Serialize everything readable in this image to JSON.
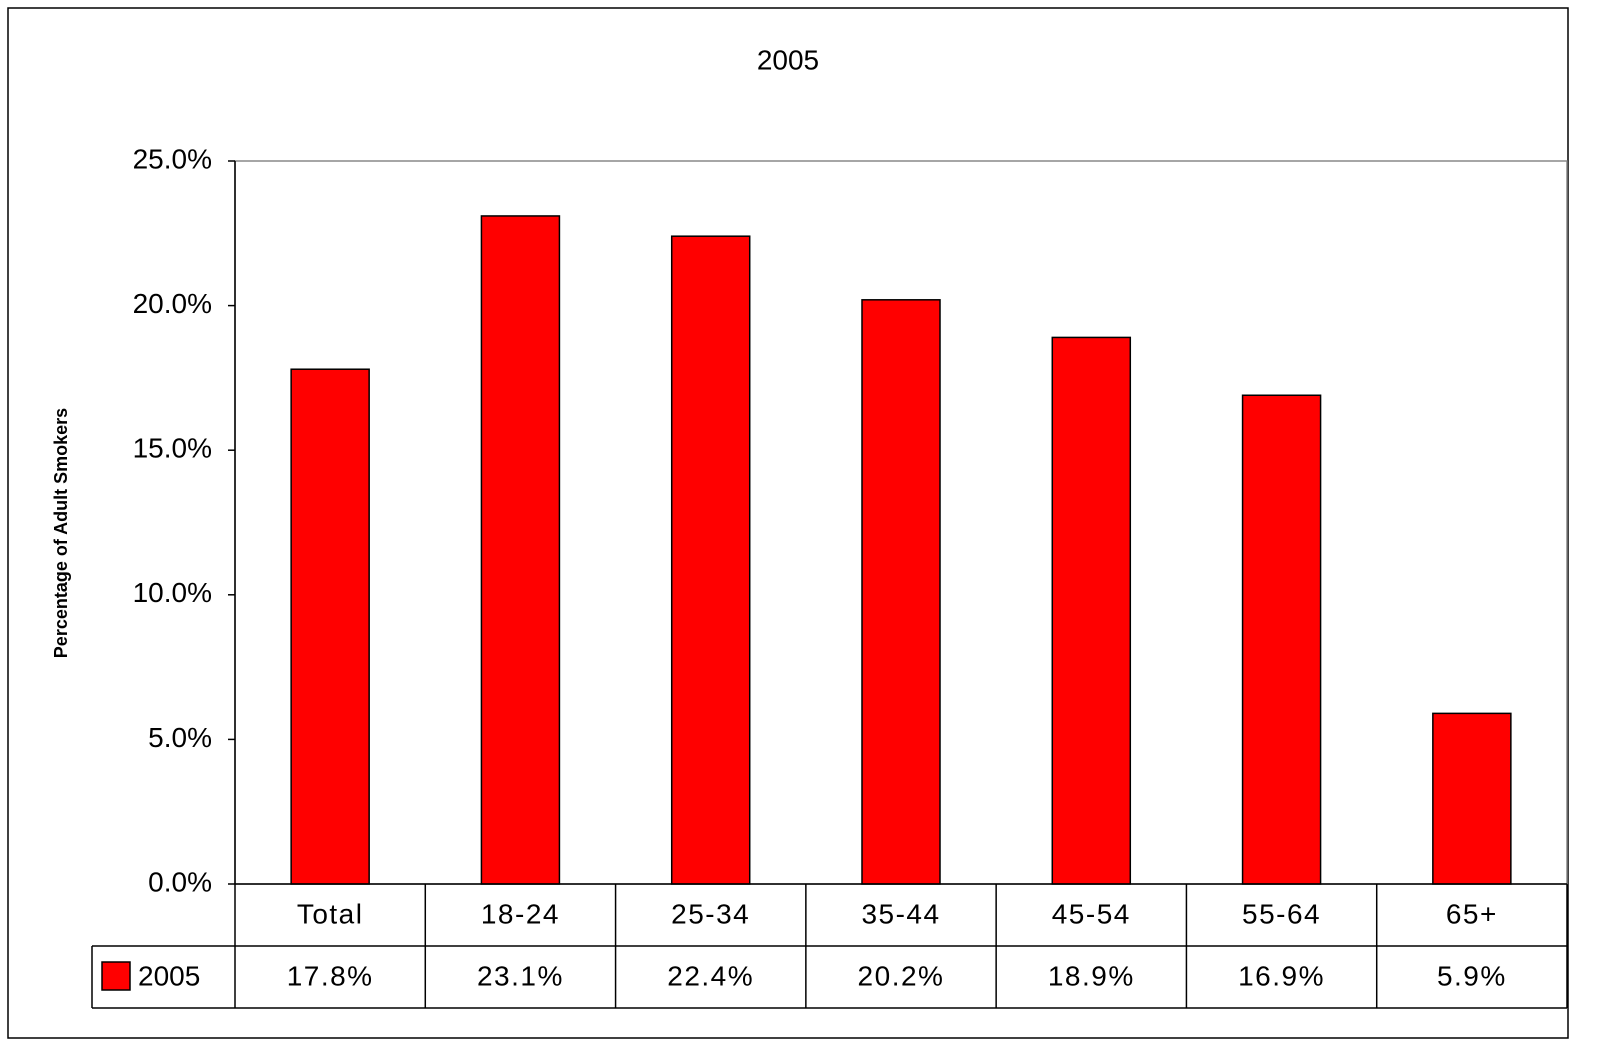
{
  "chart_data": {
    "type": "bar",
    "title": "2005",
    "y_label": "Percentage of Adult Smokers",
    "categories": [
      "Total",
      "18-24",
      "25-34",
      "35-44",
      "45-54",
      "55-64",
      "65+"
    ],
    "series": [
      {
        "name": "2005",
        "color": "#ff0000",
        "values": [
          17.8,
          23.1,
          22.4,
          20.2,
          18.9,
          16.9,
          5.9
        ],
        "value_labels": [
          "17.8%",
          "23.1%",
          "22.4%",
          "20.2%",
          "18.9%",
          "16.9%",
          "5.9%"
        ]
      }
    ],
    "ylim": [
      0,
      25
    ],
    "yticks": [
      {
        "value": 0,
        "label": "0.0%"
      },
      {
        "value": 5,
        "label": "5.0%"
      },
      {
        "value": 10,
        "label": "10.0%"
      },
      {
        "value": 15,
        "label": "15.0%"
      },
      {
        "value": 20,
        "label": "20.0%"
      },
      {
        "value": 25,
        "label": "25.0%"
      }
    ],
    "grid": false,
    "data_table": true
  }
}
